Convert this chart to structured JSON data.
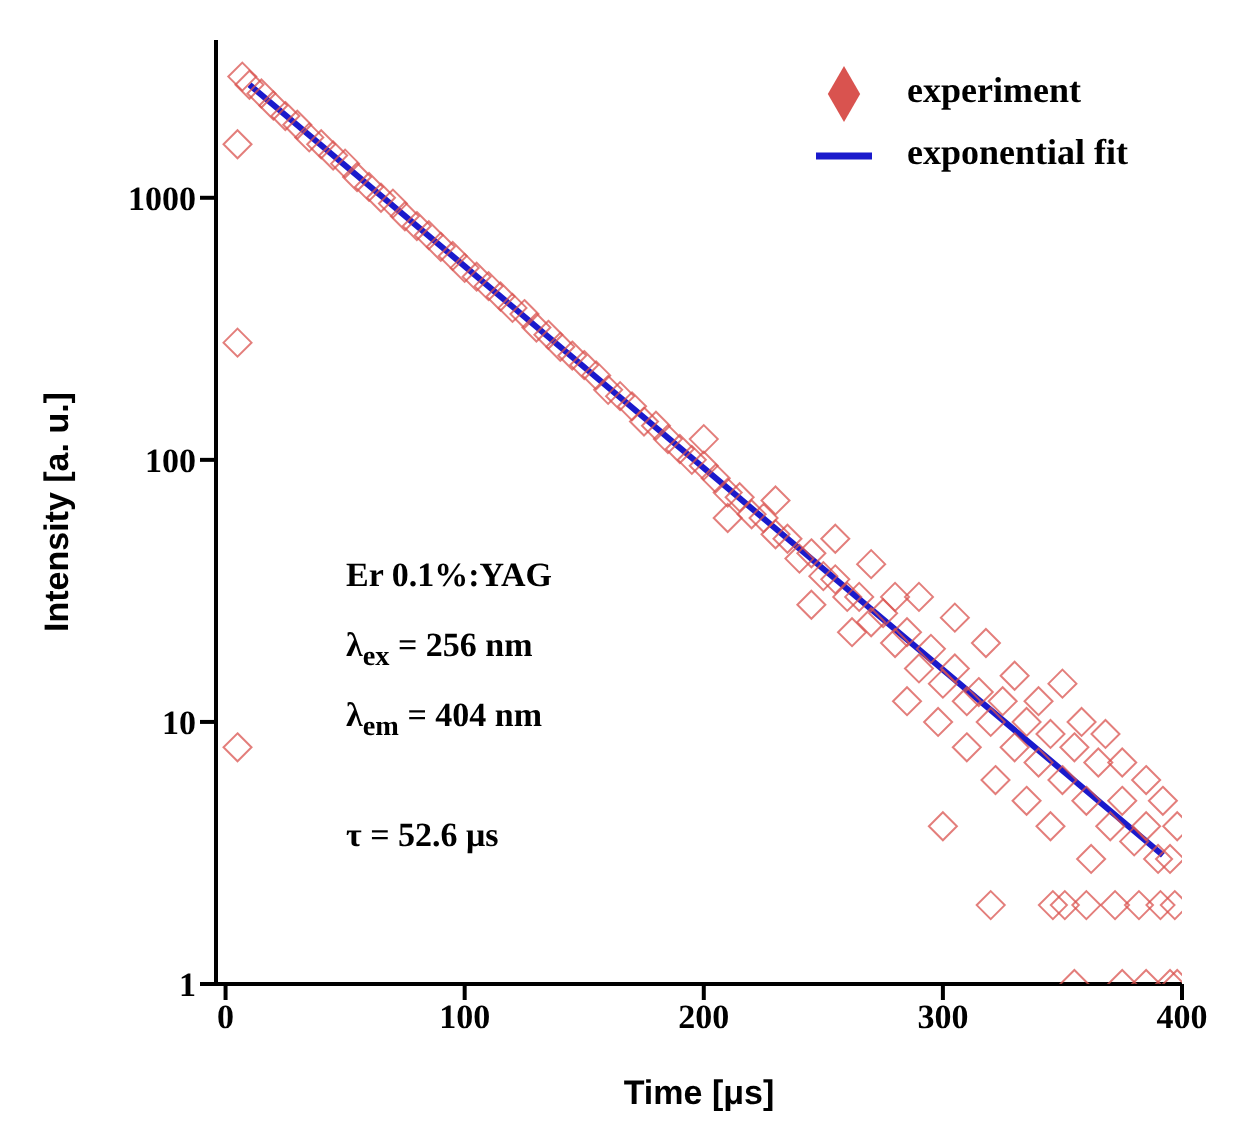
{
  "chart_data": {
    "type": "scatter",
    "xlabel": "Time [μs]",
    "ylabel": "Intensity [a. u.]",
    "xlim": [
      -4,
      400
    ],
    "xticks": [
      0,
      100,
      200,
      300,
      400
    ],
    "ylim": [
      1,
      4000
    ],
    "yticks": [
      1,
      10,
      100,
      1000
    ],
    "log": "y",
    "legend": "top right",
    "annotations": [
      "Er 0.1%:YAG",
      "λ$_{ex}$ = 256 nm",
      "λ$_{em}$ = 404 nm",
      "τ = 52.6 μs"
    ],
    "series": [
      {
        "name": "experiment",
        "marker": "diamond",
        "color": "#d9534f",
        "x": [
          5,
          5,
          5,
          7,
          10,
          15,
          20,
          25,
          30,
          35,
          40,
          45,
          50,
          55,
          60,
          65,
          70,
          75,
          80,
          85,
          90,
          95,
          100,
          105,
          110,
          115,
          120,
          125,
          130,
          135,
          140,
          145,
          150,
          155,
          160,
          165,
          170,
          175,
          180,
          185,
          190,
          195,
          200,
          205,
          210,
          215,
          220,
          225,
          230,
          235,
          240,
          245,
          250,
          255,
          260,
          265,
          270,
          275,
          280,
          285,
          290,
          295,
          300,
          305,
          310,
          315,
          320,
          325,
          330,
          335,
          340,
          345,
          350,
          355,
          360,
          365,
          370,
          375,
          380,
          385,
          390,
          395,
          200,
          210,
          230,
          245,
          255,
          262,
          270,
          280,
          285,
          290,
          298,
          305,
          310,
          318,
          322,
          330,
          335,
          340,
          345,
          350,
          358,
          362,
          368,
          375,
          385,
          392,
          398,
          300,
          320,
          346,
          351,
          360,
          372,
          382,
          391,
          397,
          355,
          375,
          385,
          395,
          398
        ],
        "values": [
          1600,
          280,
          8,
          2900,
          2700,
          2500,
          2250,
          2050,
          1900,
          1700,
          1600,
          1450,
          1350,
          1200,
          1100,
          1000,
          950,
          850,
          780,
          720,
          650,
          600,
          540,
          500,
          460,
          420,
          380,
          360,
          320,
          300,
          270,
          250,
          230,
          210,
          185,
          175,
          160,
          140,
          135,
          120,
          110,
          100,
          95,
          85,
          75,
          72,
          62,
          60,
          52,
          50,
          42,
          44,
          36,
          35,
          30,
          30,
          24,
          26,
          20,
          22,
          16,
          19,
          14,
          16,
          12,
          13,
          10,
          12,
          8,
          10,
          7,
          9,
          6,
          8,
          5,
          7,
          4,
          5,
          3.5,
          4,
          3,
          3,
          120,
          60,
          70,
          28,
          50,
          22,
          40,
          30,
          12,
          30,
          10,
          25,
          8,
          20,
          6,
          15,
          5,
          12,
          4,
          14,
          10,
          3,
          9,
          7,
          6,
          5,
          4,
          4,
          2,
          2,
          2,
          2,
          2,
          2,
          2,
          2,
          1,
          1,
          1,
          1,
          1
        ]
      },
      {
        "name": "exponential fit",
        "type": "line",
        "marker": "none",
        "line_style": "solid",
        "color": "#1a1acc",
        "x": [
          10,
          392
        ],
        "values": [
          2700,
          3.1
        ]
      }
    ]
  }
}
